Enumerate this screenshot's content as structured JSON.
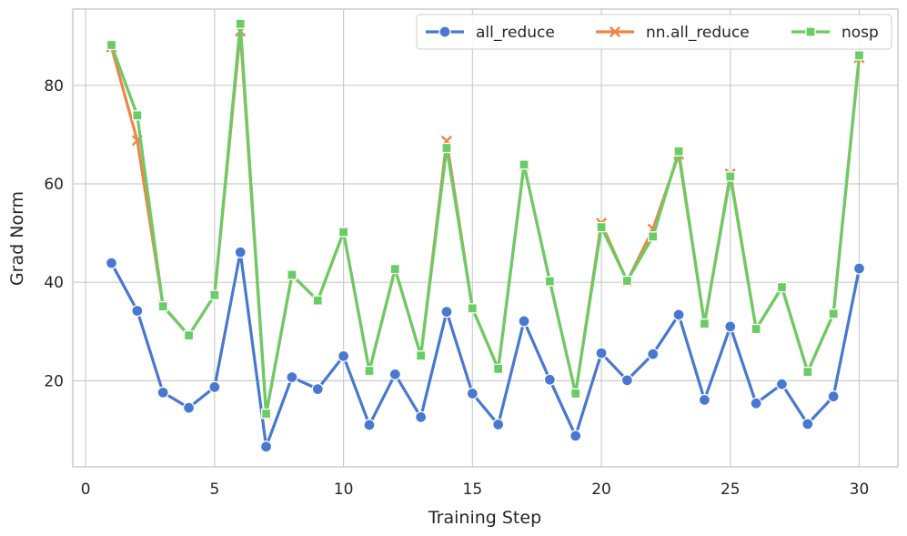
{
  "chart_data": {
    "type": "line",
    "title": "",
    "xlabel": "Training Step",
    "ylabel": "Grad Norm",
    "xlim": [
      -0.5,
      31.5
    ],
    "ylim": [
      2.5,
      95.5
    ],
    "xticks": [
      0,
      5,
      10,
      15,
      20,
      25,
      30
    ],
    "yticks": [
      20,
      40,
      60,
      80
    ],
    "grid": true,
    "legend_position": "top-right",
    "x": [
      1,
      2,
      3,
      4,
      5,
      6,
      7,
      8,
      9,
      10,
      11,
      12,
      13,
      14,
      15,
      16,
      17,
      18,
      19,
      20,
      21,
      22,
      23,
      24,
      25,
      26,
      27,
      28,
      29,
      30
    ],
    "series": [
      {
        "name": "all_reduce",
        "color": "#4878d0",
        "marker": "circle",
        "values": [
          43.9,
          34.2,
          17.6,
          14.5,
          18.7,
          46.1,
          6.6,
          20.7,
          18.3,
          25.0,
          11.0,
          21.3,
          12.6,
          34.0,
          17.4,
          11.1,
          32.1,
          20.2,
          8.8,
          25.6,
          20.1,
          25.4,
          33.4,
          16.1,
          31.0,
          15.4,
          19.3,
          11.2,
          16.8,
          42.8
        ]
      },
      {
        "name": "nn.all_reduce",
        "color": "#ee854a",
        "marker": "x",
        "values": [
          87.8,
          68.8,
          35.2,
          29.2,
          37.4,
          91.0,
          13.2,
          41.5,
          36.3,
          50.2,
          22.0,
          42.7,
          25.1,
          68.7,
          34.7,
          22.4,
          63.8,
          40.2,
          17.4,
          52.0,
          40.2,
          50.8,
          66.0,
          31.6,
          62.0,
          30.5,
          39.0,
          21.8,
          33.6,
          85.6
        ]
      },
      {
        "name": "nosp",
        "color": "#6acc64",
        "marker": "square",
        "values": [
          88.2,
          73.9,
          35.1,
          29.2,
          37.4,
          92.5,
          13.3,
          41.5,
          36.3,
          50.2,
          22.0,
          42.7,
          25.1,
          67.3,
          34.7,
          22.4,
          63.9,
          40.2,
          17.4,
          51.2,
          40.3,
          49.3,
          66.6,
          31.6,
          61.5,
          30.5,
          39.0,
          21.8,
          33.6,
          86.1
        ]
      }
    ]
  }
}
